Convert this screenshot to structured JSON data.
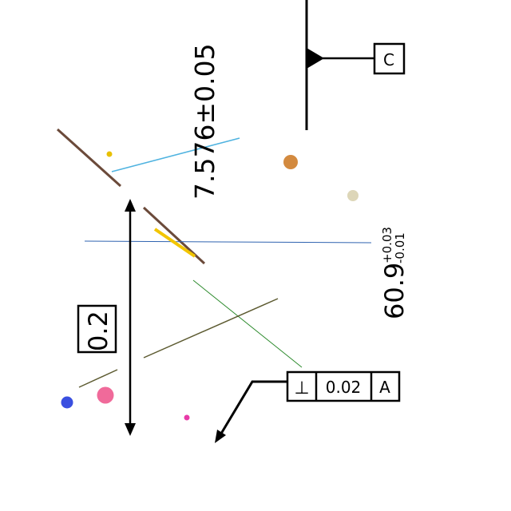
{
  "dimensions": {
    "vertical": {
      "nominal": "7.576",
      "tolerance": "±0.05"
    },
    "right": {
      "nominal": "60.9",
      "upper": "+0.03",
      "lower": "-0.01"
    },
    "basic": "0.2"
  },
  "feature_control_frame": {
    "symbol": "⊥",
    "tolerance": "0.02",
    "datum": "A"
  },
  "datum_feature": {
    "label": "C"
  },
  "colors": {
    "brown": "#6b4a3a",
    "sky": "#4fb3e0",
    "blue_line": "#2f63b0",
    "green": "#2e8b2e",
    "olive": "#5c5a30",
    "yellow": "#f2c500",
    "orange": "#d38a3f",
    "beige": "#ddd6b8",
    "blue_dot": "#3a4fe0",
    "pink": "#f06a9a",
    "magenta": "#e83aa8",
    "yellow_dot": "#e8c000"
  }
}
